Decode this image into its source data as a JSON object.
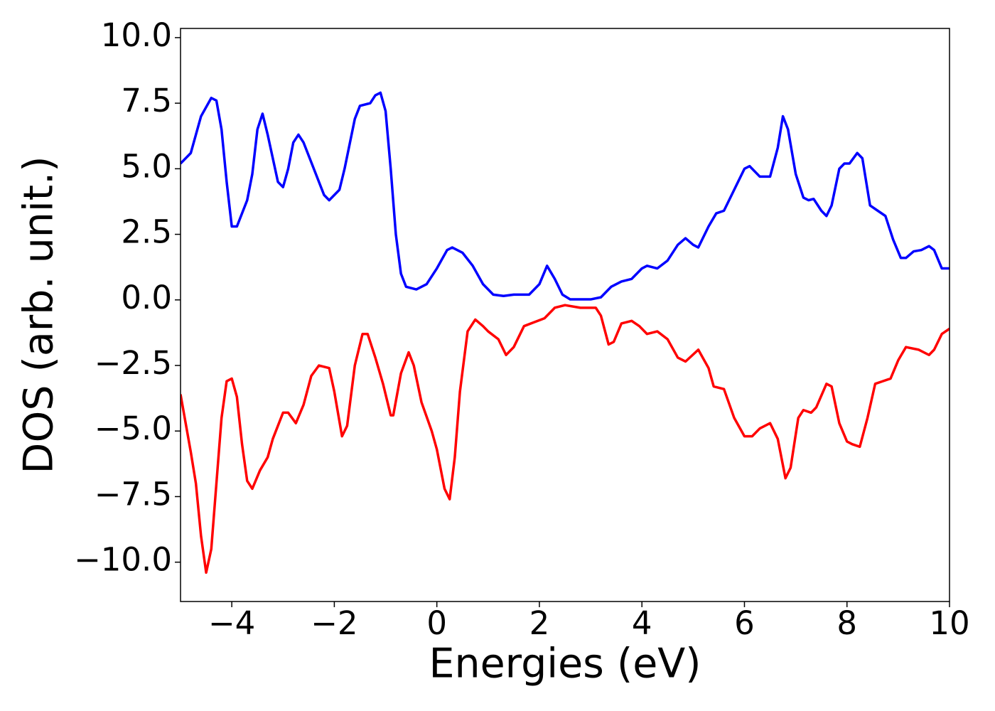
{
  "chart_data": {
    "type": "line",
    "xlabel": "Energies (eV)",
    "ylabel": "DOS (arb. unit.)",
    "xlim": [
      -5,
      10
    ],
    "ylim": [
      -11.5,
      10.35
    ],
    "xticks": [
      {
        "value": -4,
        "label": "−4"
      },
      {
        "value": -2,
        "label": "−2"
      },
      0,
      2,
      4,
      6,
      8,
      10
    ],
    "yticks": [
      {
        "value": -10,
        "label": "−10.0"
      },
      {
        "value": -7.5,
        "label": "−7.5"
      },
      {
        "value": -5,
        "label": "−5.0"
      },
      {
        "value": -2.5,
        "label": "−2.5"
      },
      {
        "value": 0,
        "label": "0.0"
      },
      {
        "value": 2.5,
        "label": "2.5"
      },
      {
        "value": 5,
        "label": "5.0"
      },
      {
        "value": 7.5,
        "label": "7.5"
      },
      {
        "value": 10,
        "label": "10.0"
      }
    ],
    "series": [
      {
        "color": "#0000ff",
        "x": [
          -5,
          -4.8,
          -4.6,
          -4.4,
          -4.3,
          -4.2,
          -4.1,
          -4.0,
          -3.9,
          -3.7,
          -3.6,
          -3.5,
          -3.4,
          -3.3,
          -3.1,
          -3.0,
          -2.9,
          -2.8,
          -2.7,
          -2.6,
          -2.4,
          -2.2,
          -2.1,
          -1.9,
          -1.8,
          -1.6,
          -1.5,
          -1.3,
          -1.2,
          -1.1,
          -1.0,
          -0.9,
          -0.8,
          -0.7,
          -0.6,
          -0.4,
          -0.2,
          0.0,
          0.2,
          0.3,
          0.5,
          0.7,
          0.9,
          1.1,
          1.3,
          1.5,
          1.8,
          2.0,
          2.15,
          2.3,
          2.45,
          2.6,
          3.0,
          3.2,
          3.4,
          3.6,
          3.8,
          4.0,
          4.1,
          4.3,
          4.5,
          4.7,
          4.85,
          5.0,
          5.1,
          5.3,
          5.45,
          5.6,
          5.8,
          6.0,
          6.1,
          6.3,
          6.5,
          6.65,
          6.75,
          6.85,
          7.0,
          7.15,
          7.25,
          7.35,
          7.5,
          7.6,
          7.7,
          7.85,
          7.95,
          8.05,
          8.2,
          8.3,
          8.45,
          8.6,
          8.75,
          8.9,
          9.05,
          9.15,
          9.3,
          9.45,
          9.6,
          9.7,
          9.85,
          10
        ],
        "values": [
          5.2,
          5.6,
          7.0,
          7.7,
          7.6,
          6.5,
          4.5,
          2.8,
          2.8,
          3.8,
          4.8,
          6.5,
          7.1,
          6.3,
          4.5,
          4.3,
          5.0,
          6.0,
          6.3,
          6.0,
          5.0,
          4.0,
          3.8,
          4.2,
          5.0,
          6.9,
          7.4,
          7.5,
          7.8,
          7.9,
          7.2,
          5.0,
          2.5,
          1.0,
          0.5,
          0.4,
          0.6,
          1.2,
          1.9,
          2.0,
          1.8,
          1.3,
          0.6,
          0.2,
          0.15,
          0.2,
          0.2,
          0.6,
          1.3,
          0.8,
          0.2,
          0.02,
          0.02,
          0.1,
          0.5,
          0.7,
          0.8,
          1.2,
          1.3,
          1.2,
          1.5,
          2.1,
          2.35,
          2.1,
          2.0,
          2.8,
          3.3,
          3.4,
          4.2,
          5.0,
          5.1,
          4.7,
          4.7,
          5.8,
          7.0,
          6.5,
          4.8,
          3.9,
          3.8,
          3.85,
          3.4,
          3.2,
          3.6,
          5.0,
          5.2,
          5.2,
          5.6,
          5.4,
          3.6,
          3.4,
          3.2,
          2.3,
          1.6,
          1.6,
          1.85,
          1.9,
          2.05,
          1.9,
          1.2,
          1.2
        ]
      },
      {
        "color": "#ff0000",
        "x": [
          -5,
          -4.8,
          -4.7,
          -4.6,
          -4.5,
          -4.4,
          -4.3,
          -4.2,
          -4.1,
          -4.0,
          -3.9,
          -3.8,
          -3.7,
          -3.6,
          -3.45,
          -3.3,
          -3.2,
          -3.0,
          -2.9,
          -2.75,
          -2.6,
          -2.45,
          -2.3,
          -2.1,
          -2.0,
          -1.85,
          -1.75,
          -1.6,
          -1.45,
          -1.35,
          -1.2,
          -1.05,
          -0.9,
          -0.85,
          -0.7,
          -0.55,
          -0.45,
          -0.3,
          -0.1,
          0.0,
          0.15,
          0.25,
          0.35,
          0.45,
          0.6,
          0.75,
          0.9,
          1.0,
          1.2,
          1.35,
          1.5,
          1.7,
          1.9,
          2.1,
          2.3,
          2.5,
          2.8,
          3.1,
          3.2,
          3.35,
          3.45,
          3.6,
          3.8,
          3.95,
          4.1,
          4.3,
          4.5,
          4.7,
          4.85,
          5.1,
          5.3,
          5.4,
          5.6,
          5.8,
          6.0,
          6.15,
          6.3,
          6.5,
          6.65,
          6.8,
          6.9,
          7.05,
          7.15,
          7.3,
          7.4,
          7.6,
          7.7,
          7.85,
          8.0,
          8.1,
          8.25,
          8.4,
          8.55,
          8.7,
          8.85,
          9.0,
          9.15,
          9.4,
          9.6,
          9.7,
          9.85,
          10
        ],
        "values": [
          -3.6,
          -5.8,
          -7.0,
          -9.0,
          -10.4,
          -9.5,
          -7.0,
          -4.5,
          -3.1,
          -3.0,
          -3.7,
          -5.5,
          -6.9,
          -7.2,
          -6.5,
          -6.0,
          -5.3,
          -4.3,
          -4.3,
          -4.7,
          -4.0,
          -2.9,
          -2.5,
          -2.6,
          -3.5,
          -5.2,
          -4.8,
          -2.5,
          -1.3,
          -1.3,
          -2.2,
          -3.2,
          -4.4,
          -4.4,
          -2.8,
          -2.0,
          -2.5,
          -3.9,
          -5.0,
          -5.7,
          -7.2,
          -7.6,
          -6.0,
          -3.5,
          -1.2,
          -0.75,
          -1.0,
          -1.2,
          -1.5,
          -2.1,
          -1.8,
          -1.0,
          -0.85,
          -0.7,
          -0.3,
          -0.2,
          -0.3,
          -0.3,
          -0.6,
          -1.7,
          -1.6,
          -0.9,
          -0.8,
          -1.0,
          -1.3,
          -1.2,
          -1.5,
          -2.2,
          -2.35,
          -1.9,
          -2.6,
          -3.3,
          -3.4,
          -4.5,
          -5.2,
          -5.2,
          -4.9,
          -4.7,
          -5.3,
          -6.8,
          -6.4,
          -4.5,
          -4.2,
          -4.3,
          -4.1,
          -3.2,
          -3.3,
          -4.7,
          -5.4,
          -5.5,
          -5.6,
          -4.5,
          -3.2,
          -3.1,
          -3.0,
          -2.3,
          -1.8,
          -1.9,
          -2.1,
          -1.9,
          -1.3,
          -1.1
        ]
      }
    ]
  }
}
